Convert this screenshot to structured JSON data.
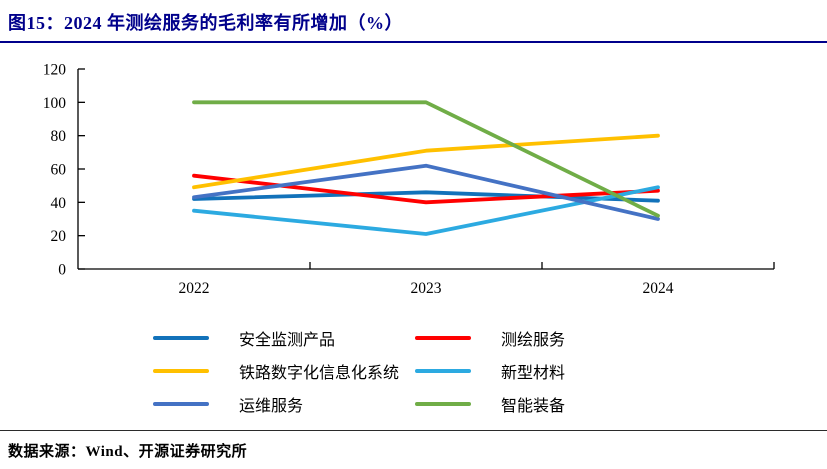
{
  "figure": {
    "title": "图15：2024 年测绘服务的毛利率有所增加（%）",
    "title_color": "#00008B",
    "source": "数据来源：Wind、开源证券研究所"
  },
  "chart_data": {
    "type": "line",
    "title": "2024 年测绘服务的毛利率有所增加（%）",
    "categories": [
      "2022",
      "2023",
      "2024"
    ],
    "series": [
      {
        "name": "安全监测产品",
        "color": "#1272BA",
        "values": [
          42,
          46,
          41
        ]
      },
      {
        "name": "测绘服务",
        "color": "#FF0000",
        "values": [
          56,
          40,
          47
        ]
      },
      {
        "name": "铁路数字化信息化系统",
        "color": "#FFC000",
        "values": [
          49,
          71,
          80
        ]
      },
      {
        "name": "新型材料",
        "color": "#2CAAE1",
        "values": [
          35,
          21,
          49
        ]
      },
      {
        "name": "运维服务",
        "color": "#4472C4",
        "values": [
          43,
          62,
          30
        ]
      },
      {
        "name": "智能装备",
        "color": "#70AD47",
        "values": [
          100,
          100,
          32
        ]
      }
    ],
    "xlabel": "",
    "ylabel": "",
    "ylim": [
      0,
      120
    ],
    "ytick_step": 20,
    "grid": false,
    "legend_position": "bottom",
    "legend_columns": 2,
    "axis_color": "#000000"
  }
}
